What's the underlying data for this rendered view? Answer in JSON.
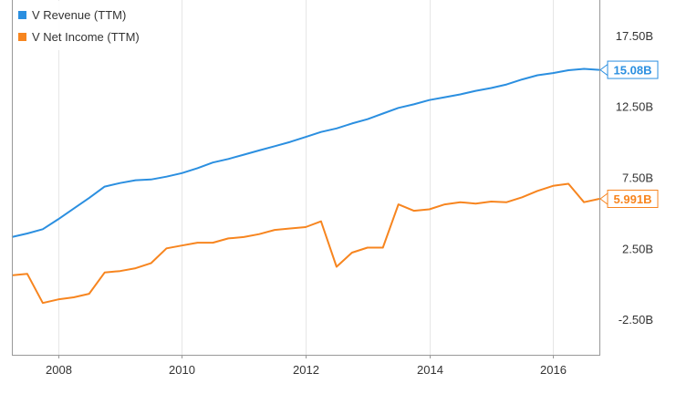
{
  "chart_data": {
    "type": "line",
    "title": "",
    "xlabel": "",
    "ylabel": "",
    "xlim": [
      2007.25,
      2016.75
    ],
    "ylim": [
      -5,
      20
    ],
    "x_ticks": [
      {
        "value": 2008,
        "label": "2008"
      },
      {
        "value": 2010,
        "label": "2010"
      },
      {
        "value": 2012,
        "label": "2012"
      },
      {
        "value": 2014,
        "label": "2014"
      },
      {
        "value": 2016,
        "label": "2016"
      }
    ],
    "y_ticks": [
      {
        "value": 17.5,
        "label": "17.50B"
      },
      {
        "value": 12.5,
        "label": "12.50B"
      },
      {
        "value": 7.5,
        "label": "7.50B"
      },
      {
        "value": 2.5,
        "label": "2.50B"
      },
      {
        "value": -2.5,
        "label": "-2.50B"
      }
    ],
    "grid": "vertical",
    "legend_position": "top-left",
    "series": [
      {
        "name": "V Revenue (TTM)",
        "color": "#2b8fe0",
        "end_label": "15.08B",
        "x": [
          2007.25,
          2007.5,
          2007.75,
          2008.0,
          2008.25,
          2008.5,
          2008.75,
          2009.0,
          2009.25,
          2009.5,
          2009.75,
          2010.0,
          2010.25,
          2010.5,
          2010.75,
          2011.0,
          2011.25,
          2011.5,
          2011.75,
          2012.0,
          2012.25,
          2012.5,
          2012.75,
          2013.0,
          2013.25,
          2013.5,
          2013.75,
          2014.0,
          2014.25,
          2014.5,
          2014.75,
          2015.0,
          2015.25,
          2015.5,
          2015.75,
          2016.0,
          2016.25,
          2016.5,
          2016.75
        ],
        "values": [
          3.3,
          3.55,
          3.85,
          4.55,
          5.3,
          6.05,
          6.85,
          7.1,
          7.3,
          7.35,
          7.55,
          7.8,
          8.15,
          8.55,
          8.8,
          9.1,
          9.4,
          9.7,
          10.0,
          10.35,
          10.7,
          10.95,
          11.3,
          11.6,
          12.0,
          12.4,
          12.65,
          12.95,
          13.15,
          13.35,
          13.6,
          13.8,
          14.05,
          14.4,
          14.7,
          14.85,
          15.05,
          15.15,
          15.08
        ]
      },
      {
        "name": "V Net Income (TTM)",
        "color": "#f7851f",
        "end_label": "5.991B",
        "x": [
          2007.25,
          2007.5,
          2007.75,
          2008.0,
          2008.25,
          2008.5,
          2008.75,
          2009.0,
          2009.25,
          2009.5,
          2009.75,
          2010.0,
          2010.25,
          2010.5,
          2010.75,
          2011.0,
          2011.25,
          2011.5,
          2011.75,
          2012.0,
          2012.25,
          2012.5,
          2012.75,
          2013.0,
          2013.25,
          2013.5,
          2013.75,
          2014.0,
          2014.25,
          2014.5,
          2014.75,
          2015.0,
          2015.25,
          2015.5,
          2015.75,
          2016.0,
          2016.25,
          2016.5,
          2016.75
        ],
        "values": [
          0.6,
          0.7,
          -1.35,
          -1.1,
          -0.95,
          -0.7,
          0.8,
          0.9,
          1.1,
          1.45,
          2.5,
          2.7,
          2.9,
          2.9,
          3.2,
          3.3,
          3.5,
          3.8,
          3.9,
          4.0,
          4.4,
          1.2,
          2.2,
          2.55,
          2.55,
          5.6,
          5.15,
          5.25,
          5.6,
          5.75,
          5.65,
          5.8,
          5.75,
          6.1,
          6.55,
          6.9,
          7.05,
          5.75,
          5.99
        ]
      }
    ]
  }
}
